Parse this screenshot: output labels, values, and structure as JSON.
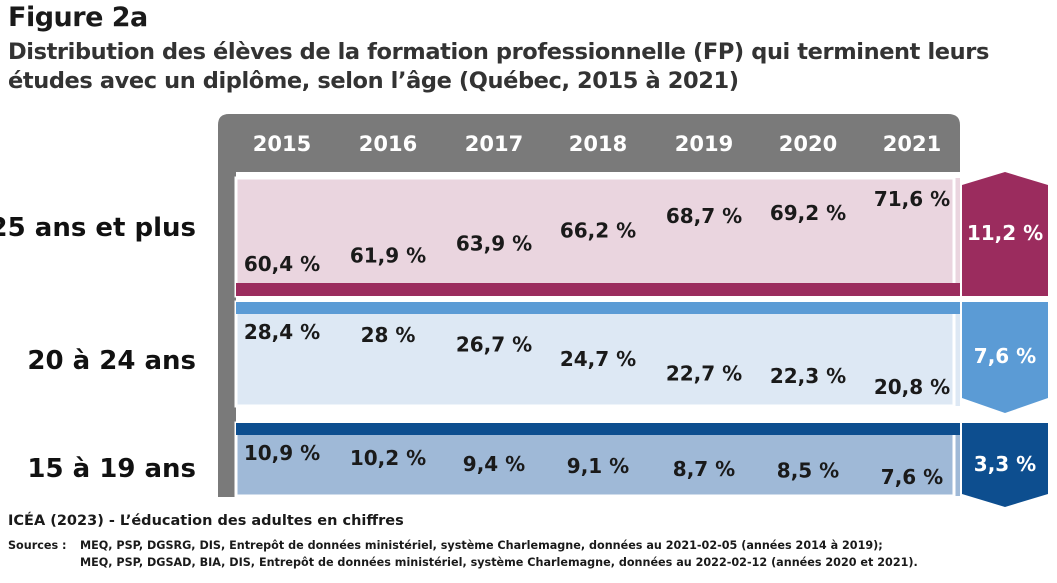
{
  "figure_label": "Figure 2a",
  "title": "Distribution des élèves de la formation professionnelle (FP) qui terminent leurs études avec un diplôme, selon l’âge (Québec, 2015 à 2021)",
  "credit": "ICÉA (2023) - L’éducation des adultes en chiffres",
  "sources": {
    "label": "Sources :",
    "line1": "MEQ, PSP, DGSRG, DIS, Entrepôt de données ministériel, système Charlemagne, données au 2021-02-05 (années 2014 à 2019);",
    "line2": "MEQ, PSP, DGSAD, BIA, DIS, Entrepôt de données ministériel, système Charlemagne, données au 2022-02-12 (années 2020 et 2021)."
  },
  "colors": {
    "header_bg": "#7a7a7a",
    "group_25_plus": {
      "fill": "#ead5df",
      "accent": "#9b2c5e"
    },
    "group_20_24": {
      "fill": "#dde8f4",
      "accent": "#5b9bd5"
    },
    "group_15_19": {
      "fill": "#9fb9d7",
      "accent": "#0d4e8f"
    }
  },
  "chart_data": {
    "type": "table",
    "years": [
      "2015",
      "2016",
      "2017",
      "2018",
      "2019",
      "2020",
      "2021"
    ],
    "series": [
      {
        "name": "25 ans et plus",
        "values": [
          60.4,
          61.9,
          63.9,
          66.2,
          68.7,
          69.2,
          71.6
        ],
        "labels": [
          "60,4 %",
          "61,9 %",
          "63,9 %",
          "66,2 %",
          "68,7 %",
          "69,2 %",
          "71,6 %"
        ],
        "change": "11,2 %",
        "change_direction": "up"
      },
      {
        "name": "20 à 24 ans",
        "values": [
          28.4,
          28.0,
          26.7,
          24.7,
          22.7,
          22.3,
          20.8
        ],
        "labels": [
          "28,4 %",
          "28 %",
          "26,7 %",
          "24,7 %",
          "22,7 %",
          "22,3 %",
          "20,8 %"
        ],
        "change": "7,6 %",
        "change_direction": "down"
      },
      {
        "name": "15 à 19 ans",
        "values": [
          10.9,
          10.2,
          9.4,
          9.1,
          8.7,
          8.5,
          7.6
        ],
        "labels": [
          "10,9 %",
          "10,2 %",
          "9,4 %",
          "9,1 %",
          "8,7 %",
          "8,5 %",
          "7,6 %"
        ],
        "change": "3,3 %",
        "change_direction": "down"
      }
    ]
  }
}
